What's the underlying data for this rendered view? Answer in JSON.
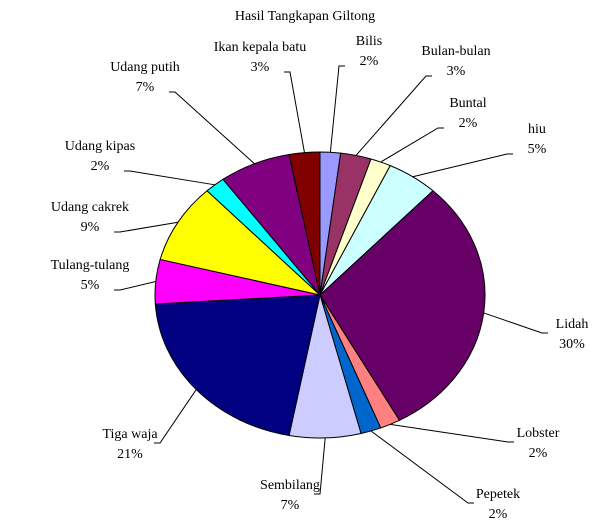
{
  "chart_data": {
    "type": "pie",
    "title": "Hasil Tangkapan Giltong",
    "categories": [
      "Bilis",
      "Bulan-bulan",
      "Buntal",
      "hiu",
      "Lidah",
      "Lobster",
      "Pepetek",
      "Sembilang",
      "Tiga waja",
      "Tulang-tulang",
      "Udang cakrek",
      "Udang kipas",
      "Udang putih",
      "Ikan kepala batu"
    ],
    "values": [
      2,
      3,
      2,
      5,
      30,
      2,
      2,
      7,
      21,
      5,
      9,
      2,
      7,
      3
    ],
    "value_labels": [
      "2%",
      "3%",
      "2%",
      "5%",
      "30%",
      "2%",
      "2%",
      "7%",
      "21%",
      "5%",
      "9%",
      "2%",
      "7%",
      "3%"
    ],
    "colors": [
      "#9999ff",
      "#993366",
      "#ffffcc",
      "#ccffff",
      "#660066",
      "#ff8080",
      "#0066cc",
      "#ccccff",
      "#000080",
      "#ff00ff",
      "#ffff00",
      "#00ffff",
      "#800080",
      "#800000"
    ]
  }
}
